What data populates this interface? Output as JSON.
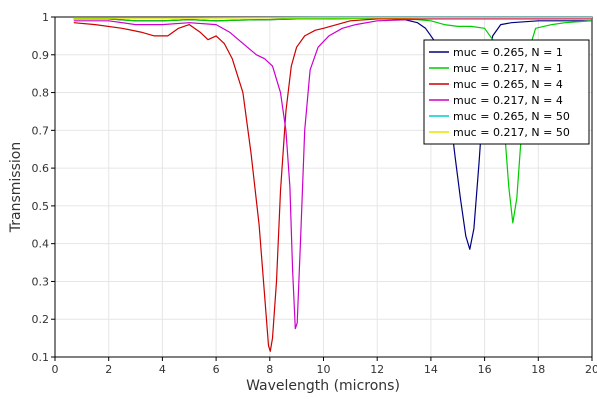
{
  "chart_data": {
    "type": "line",
    "xlabel": "Wavelength (microns)",
    "ylabel": "Transmission",
    "xlim": [
      0,
      20
    ],
    "ylim": [
      0.1,
      1
    ],
    "x_ticks": [
      0,
      2,
      4,
      6,
      8,
      10,
      12,
      14,
      16,
      18,
      20
    ],
    "y_ticks": [
      0.1,
      0.2,
      0.3,
      0.4,
      0.5,
      0.6,
      0.7,
      0.8,
      0.9,
      1
    ],
    "x_tick_labels": [
      "0",
      "2",
      "4",
      "6",
      "8",
      "10",
      "12",
      "14",
      "16",
      "18",
      "20"
    ],
    "y_tick_labels": [
      "0.1",
      "0.2",
      "0.3",
      "0.4",
      "0.5",
      "0.6",
      "0.7",
      "0.8",
      "0.9",
      "1"
    ],
    "grid": true,
    "legend_position": "top-right",
    "series": [
      {
        "name": "muc = 0.265, N = 1",
        "color": "#000080",
        "points": [
          [
            0.7,
            0.995
          ],
          [
            2,
            0.995
          ],
          [
            3,
            0.99
          ],
          [
            4,
            0.99
          ],
          [
            5,
            0.993
          ],
          [
            6,
            0.99
          ],
          [
            7,
            0.992
          ],
          [
            8,
            0.993
          ],
          [
            9,
            0.995
          ],
          [
            10,
            0.995
          ],
          [
            11,
            0.996
          ],
          [
            12,
            0.997
          ],
          [
            13,
            0.993
          ],
          [
            13.5,
            0.985
          ],
          [
            13.8,
            0.97
          ],
          [
            14.1,
            0.94
          ],
          [
            14.4,
            0.87
          ],
          [
            14.7,
            0.75
          ],
          [
            14.9,
            0.63
          ],
          [
            15.1,
            0.52
          ],
          [
            15.3,
            0.42
          ],
          [
            15.45,
            0.385
          ],
          [
            15.6,
            0.44
          ],
          [
            15.8,
            0.62
          ],
          [
            16.0,
            0.83
          ],
          [
            16.3,
            0.95
          ],
          [
            16.6,
            0.98
          ],
          [
            17,
            0.985
          ],
          [
            18,
            0.99
          ],
          [
            19,
            0.99
          ],
          [
            20,
            0.99
          ]
        ]
      },
      {
        "name": "muc = 0.217, N = 1",
        "color": "#00cc00",
        "points": [
          [
            0.7,
            0.995
          ],
          [
            2,
            0.995
          ],
          [
            3,
            0.99
          ],
          [
            4,
            0.99
          ],
          [
            5,
            0.993
          ],
          [
            6,
            0.99
          ],
          [
            7,
            0.992
          ],
          [
            8,
            0.993
          ],
          [
            9,
            0.995
          ],
          [
            10,
            0.995
          ],
          [
            11,
            0.996
          ],
          [
            12,
            0.997
          ],
          [
            13,
            0.996
          ],
          [
            14,
            0.99
          ],
          [
            14.5,
            0.98
          ],
          [
            15,
            0.975
          ],
          [
            15.5,
            0.975
          ],
          [
            16,
            0.97
          ],
          [
            16.3,
            0.94
          ],
          [
            16.5,
            0.88
          ],
          [
            16.7,
            0.74
          ],
          [
            16.9,
            0.55
          ],
          [
            17.05,
            0.455
          ],
          [
            17.2,
            0.52
          ],
          [
            17.4,
            0.72
          ],
          [
            17.6,
            0.9
          ],
          [
            17.9,
            0.97
          ],
          [
            18.5,
            0.98
          ],
          [
            19,
            0.985
          ],
          [
            20,
            0.99
          ]
        ]
      },
      {
        "name": "muc = 0.265, N = 4",
        "color": "#cc0000",
        "points": [
          [
            0.7,
            0.985
          ],
          [
            1.5,
            0.98
          ],
          [
            2.5,
            0.97
          ],
          [
            3.2,
            0.96
          ],
          [
            3.7,
            0.95
          ],
          [
            4.2,
            0.95
          ],
          [
            4.6,
            0.97
          ],
          [
            5,
            0.98
          ],
          [
            5.4,
            0.96
          ],
          [
            5.7,
            0.94
          ],
          [
            6,
            0.95
          ],
          [
            6.3,
            0.93
          ],
          [
            6.6,
            0.89
          ],
          [
            7.0,
            0.8
          ],
          [
            7.3,
            0.64
          ],
          [
            7.6,
            0.45
          ],
          [
            7.8,
            0.27
          ],
          [
            7.95,
            0.13
          ],
          [
            8.02,
            0.115
          ],
          [
            8.1,
            0.15
          ],
          [
            8.25,
            0.3
          ],
          [
            8.4,
            0.54
          ],
          [
            8.6,
            0.75
          ],
          [
            8.8,
            0.87
          ],
          [
            9.0,
            0.92
          ],
          [
            9.3,
            0.95
          ],
          [
            9.7,
            0.965
          ],
          [
            10,
            0.97
          ],
          [
            10.5,
            0.98
          ],
          [
            11,
            0.99
          ],
          [
            12,
            0.995
          ],
          [
            14,
            0.995
          ],
          [
            16,
            0.995
          ],
          [
            18,
            0.995
          ],
          [
            20,
            0.995
          ]
        ]
      },
      {
        "name": "muc = 0.217, N = 4",
        "color": "#cc00cc",
        "points": [
          [
            0.7,
            0.99
          ],
          [
            2,
            0.99
          ],
          [
            3,
            0.98
          ],
          [
            4,
            0.98
          ],
          [
            5,
            0.985
          ],
          [
            6,
            0.98
          ],
          [
            6.5,
            0.96
          ],
          [
            7.0,
            0.93
          ],
          [
            7.5,
            0.9
          ],
          [
            7.8,
            0.89
          ],
          [
            8.1,
            0.87
          ],
          [
            8.4,
            0.8
          ],
          [
            8.6,
            0.7
          ],
          [
            8.75,
            0.55
          ],
          [
            8.85,
            0.33
          ],
          [
            8.95,
            0.175
          ],
          [
            9.02,
            0.19
          ],
          [
            9.15,
            0.42
          ],
          [
            9.3,
            0.7
          ],
          [
            9.5,
            0.86
          ],
          [
            9.8,
            0.92
          ],
          [
            10.2,
            0.95
          ],
          [
            10.7,
            0.97
          ],
          [
            11.2,
            0.98
          ],
          [
            12,
            0.99
          ],
          [
            14,
            0.995
          ],
          [
            16,
            0.995
          ],
          [
            18,
            0.995
          ],
          [
            20,
            0.995
          ]
        ]
      },
      {
        "name": "muc = 0.265, N = 50",
        "color": "#00cccc",
        "points": [
          [
            0.7,
            0.998
          ],
          [
            5,
            0.998
          ],
          [
            10,
            0.999
          ],
          [
            15,
            0.999
          ],
          [
            20,
            0.999
          ]
        ]
      },
      {
        "name": "muc = 0.217, N = 50",
        "color": "#e6e600",
        "points": [
          [
            0.7,
            0.997
          ],
          [
            5,
            0.997
          ],
          [
            10,
            0.998
          ],
          [
            15,
            0.998
          ],
          [
            20,
            0.998
          ]
        ]
      }
    ]
  }
}
